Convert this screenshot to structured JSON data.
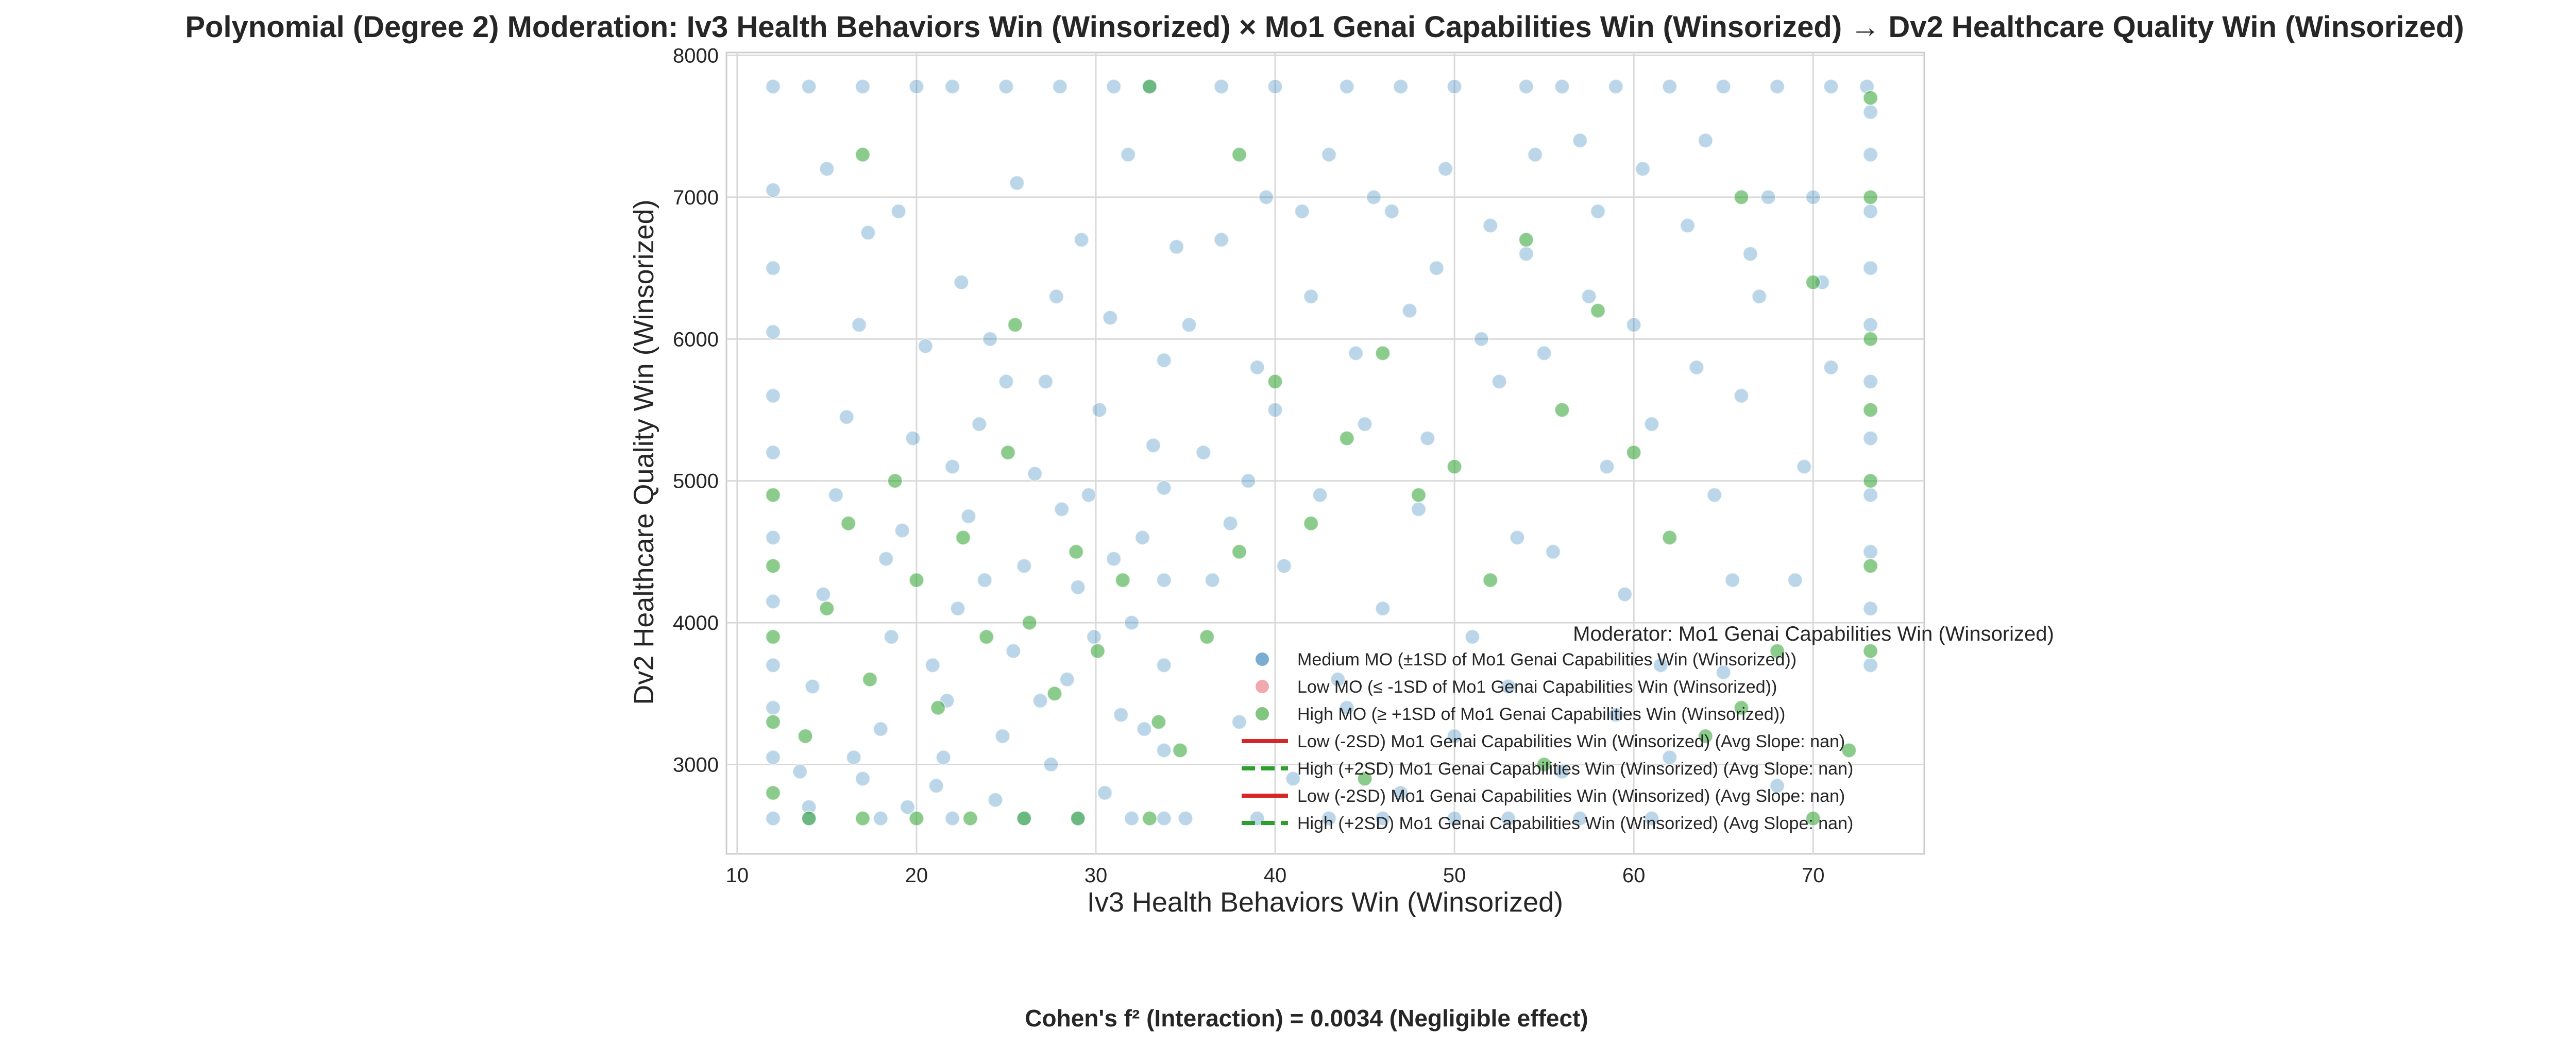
{
  "chart_data": {
    "type": "scatter",
    "title": "Polynomial (Degree 2) Moderation: Iv3 Health Behaviors Win (Winsorized) × Mo1 Genai Capabilities Win (Winsorized) → Dv2 Healthcare Quality Win (Winsorized)",
    "xlabel": "Iv3 Health Behaviors Win (Winsorized)",
    "ylabel": "Dv2 Healthcare Quality Win (Winsorized)",
    "xlim": [
      9.4,
      76.2
    ],
    "ylim": [
      2370,
      8020
    ],
    "xticks": [
      10,
      20,
      30,
      40,
      50,
      60,
      70
    ],
    "yticks": [
      3000,
      4000,
      5000,
      6000,
      7000,
      8000
    ],
    "grid": true,
    "legend_title": "Moderator: Mo1 Genai Capabilities Win (Winsorized)",
    "legend_position": "lower right",
    "legend_items": [
      {
        "label": "Medium MO (±1SD of Mo1 Genai Capabilities Win (Winsorized))",
        "kind": "marker",
        "color": "#1f77b4"
      },
      {
        "label": "Low MO (≤ -1SD of Mo1 Genai Capabilities Win (Winsorized))",
        "kind": "marker",
        "color": "#e8707a"
      },
      {
        "label": "High MO (≥ +1SD of Mo1 Genai Capabilities Win (Winsorized))",
        "kind": "marker",
        "color": "#2ca02c"
      },
      {
        "label": "Low (-2SD) Mo1 Genai Capabilities Win (Winsorized) (Avg Slope: nan)",
        "kind": "solid",
        "color": "#d62728"
      },
      {
        "label": "High (+2SD) Mo1 Genai Capabilities Win (Winsorized) (Avg Slope: nan)",
        "kind": "dashed",
        "color": "#2ca02c"
      },
      {
        "label": "Low (-2SD) Mo1 Genai Capabilities Win (Winsorized) (Avg Slope: nan)",
        "kind": "solid",
        "color": "#d62728"
      },
      {
        "label": "High (+2SD) Mo1 Genai Capabilities Win (Winsorized) (Avg Slope: nan)",
        "kind": "dashed",
        "color": "#2ca02c"
      }
    ],
    "series": [
      {
        "name": "Medium MO (±1SD of Mo1 Genai Capabilities Win (Winsorized))",
        "color": "#1f77b4",
        "opacity": 0.3,
        "points": [
          [
            12.0,
            2620
          ],
          [
            12.0,
            3050
          ],
          [
            12.0,
            3400
          ],
          [
            12.0,
            3700
          ],
          [
            12.0,
            4150
          ],
          [
            12.0,
            4600
          ],
          [
            12.0,
            5200
          ],
          [
            12.0,
            5600
          ],
          [
            12.0,
            6050
          ],
          [
            12.0,
            6500
          ],
          [
            12.0,
            7050
          ],
          [
            13.5,
            2950
          ],
          [
            14.2,
            3550
          ],
          [
            14.8,
            4200
          ],
          [
            15.5,
            4900
          ],
          [
            16.1,
            5450
          ],
          [
            16.8,
            6100
          ],
          [
            17.3,
            6750
          ],
          [
            18.0,
            3250
          ],
          [
            18.6,
            3900
          ],
          [
            19.2,
            4650
          ],
          [
            19.8,
            5300
          ],
          [
            20.5,
            5950
          ],
          [
            21.1,
            2850
          ],
          [
            21.7,
            3450
          ],
          [
            22.3,
            4100
          ],
          [
            22.9,
            4750
          ],
          [
            23.5,
            5400
          ],
          [
            24.1,
            6000
          ],
          [
            24.8,
            3200
          ],
          [
            25.4,
            3800
          ],
          [
            26.0,
            4400
          ],
          [
            26.6,
            5050
          ],
          [
            27.2,
            5700
          ],
          [
            27.8,
            6300
          ],
          [
            28.4,
            3600
          ],
          [
            29.0,
            4250
          ],
          [
            29.6,
            4900
          ],
          [
            30.2,
            5500
          ],
          [
            30.8,
            6150
          ],
          [
            31.4,
            3350
          ],
          [
            32.0,
            4000
          ],
          [
            32.6,
            4600
          ],
          [
            33.2,
            5250
          ],
          [
            33.8,
            5850
          ],
          [
            33.8,
            2620
          ],
          [
            33.8,
            3100
          ],
          [
            33.8,
            3700
          ],
          [
            33.8,
            4300
          ],
          [
            33.8,
            4950
          ],
          [
            16.5,
            3050
          ],
          [
            18.3,
            4450
          ],
          [
            20.9,
            3700
          ],
          [
            22.0,
            5100
          ],
          [
            23.8,
            4300
          ],
          [
            25.0,
            5700
          ],
          [
            26.9,
            3450
          ],
          [
            28.1,
            4800
          ],
          [
            29.9,
            3900
          ],
          [
            31.0,
            4450
          ],
          [
            14.0,
            2700
          ],
          [
            17.0,
            2900
          ],
          [
            19.5,
            2700
          ],
          [
            21.5,
            3050
          ],
          [
            24.4,
            2750
          ],
          [
            27.5,
            3000
          ],
          [
            30.5,
            2800
          ],
          [
            32.7,
            3250
          ],
          [
            15.0,
            7200
          ],
          [
            19.0,
            6900
          ],
          [
            22.5,
            6400
          ],
          [
            25.6,
            7100
          ],
          [
            29.2,
            6700
          ],
          [
            31.8,
            7300
          ],
          [
            34.5,
            6650
          ],
          [
            36.0,
            5200
          ],
          [
            37.5,
            4700
          ],
          [
            39.0,
            5800
          ],
          [
            40.5,
            4400
          ],
          [
            42.0,
            6300
          ],
          [
            43.5,
            3600
          ],
          [
            45.0,
            5400
          ],
          [
            46.5,
            6900
          ],
          [
            48.0,
            4800
          ],
          [
            49.5,
            7200
          ],
          [
            51.0,
            3900
          ],
          [
            52.5,
            5700
          ],
          [
            54.0,
            6600
          ],
          [
            55.5,
            4500
          ],
          [
            57.0,
            7400
          ],
          [
            58.5,
            5100
          ],
          [
            60.0,
            6100
          ],
          [
            61.5,
            3700
          ],
          [
            63.0,
            6800
          ],
          [
            64.5,
            4900
          ],
          [
            66.0,
            5600
          ],
          [
            67.5,
            7000
          ],
          [
            69.0,
            4300
          ],
          [
            70.5,
            6400
          ],
          [
            38.0,
            3300
          ],
          [
            41.0,
            2900
          ],
          [
            44.0,
            3400
          ],
          [
            47.0,
            2800
          ],
          [
            50.0,
            3200
          ],
          [
            53.0,
            3550
          ],
          [
            56.0,
            2950
          ],
          [
            59.0,
            3350
          ],
          [
            62.0,
            3050
          ],
          [
            65.0,
            3650
          ],
          [
            68.0,
            2850
          ],
          [
            12,
            7780
          ],
          [
            14,
            7780
          ],
          [
            17,
            7780
          ],
          [
            20,
            7780
          ],
          [
            22,
            7780
          ],
          [
            25,
            7780
          ],
          [
            28,
            7780
          ],
          [
            31,
            7780
          ],
          [
            33,
            7780
          ],
          [
            37,
            7780
          ],
          [
            40,
            7780
          ],
          [
            44,
            7780
          ],
          [
            47,
            7780
          ],
          [
            50,
            7780
          ],
          [
            54,
            7780
          ],
          [
            56,
            7780
          ],
          [
            59,
            7780
          ],
          [
            62,
            7780
          ],
          [
            65,
            7780
          ],
          [
            68,
            7780
          ],
          [
            71,
            7780
          ],
          [
            73,
            7780
          ],
          [
            14,
            2620
          ],
          [
            18,
            2620
          ],
          [
            22,
            2620
          ],
          [
            26,
            2620
          ],
          [
            29,
            2620
          ],
          [
            32,
            2620
          ],
          [
            35,
            2620
          ],
          [
            39,
            2620
          ],
          [
            43,
            2620
          ],
          [
            46,
            2620
          ],
          [
            50,
            2620
          ],
          [
            53,
            2620
          ],
          [
            57,
            2620
          ],
          [
            61,
            2620
          ],
          [
            73.2,
            3700
          ],
          [
            73.2,
            4100
          ],
          [
            73.2,
            4500
          ],
          [
            73.2,
            4900
          ],
          [
            73.2,
            5300
          ],
          [
            73.2,
            5700
          ],
          [
            73.2,
            6100
          ],
          [
            73.2,
            6500
          ],
          [
            73.2,
            6900
          ],
          [
            73.2,
            7300
          ],
          [
            73.2,
            7600
          ],
          [
            36.5,
            4300
          ],
          [
            38.5,
            5000
          ],
          [
            40.0,
            5500
          ],
          [
            42.5,
            4900
          ],
          [
            44.5,
            5900
          ],
          [
            46.0,
            4100
          ],
          [
            48.5,
            5300
          ],
          [
            51.5,
            6000
          ],
          [
            53.5,
            4600
          ],
          [
            55.0,
            5900
          ],
          [
            57.5,
            6300
          ],
          [
            59.5,
            4200
          ],
          [
            61.0,
            5400
          ],
          [
            63.5,
            5800
          ],
          [
            65.5,
            4300
          ],
          [
            67.0,
            6300
          ],
          [
            69.5,
            5100
          ],
          [
            71.0,
            5800
          ],
          [
            35.2,
            6100
          ],
          [
            37.0,
            6700
          ],
          [
            39.5,
            7000
          ],
          [
            41.5,
            6900
          ],
          [
            43.0,
            7300
          ],
          [
            45.5,
            7000
          ],
          [
            47.5,
            6200
          ],
          [
            49.0,
            6500
          ],
          [
            52.0,
            6800
          ],
          [
            54.5,
            7300
          ],
          [
            58.0,
            6900
          ],
          [
            60.5,
            7200
          ],
          [
            64.0,
            7400
          ],
          [
            66.5,
            6600
          ],
          [
            70.0,
            7000
          ]
        ]
      },
      {
        "name": "High MO (≥ +1SD of Mo1 Genai Capabilities Win (Winsorized))",
        "color": "#2ca02c",
        "opacity": 0.55,
        "points": [
          [
            12.0,
            2800
          ],
          [
            12.0,
            3300
          ],
          [
            12.0,
            3900
          ],
          [
            12.0,
            4400
          ],
          [
            12.0,
            4900
          ],
          [
            13.8,
            3200
          ],
          [
            15.0,
            4100
          ],
          [
            16.2,
            4700
          ],
          [
            17.4,
            3600
          ],
          [
            18.8,
            5000
          ],
          [
            20.0,
            4300
          ],
          [
            21.2,
            3400
          ],
          [
            22.6,
            4600
          ],
          [
            23.9,
            3900
          ],
          [
            25.1,
            5200
          ],
          [
            26.3,
            4000
          ],
          [
            27.7,
            3500
          ],
          [
            28.9,
            4500
          ],
          [
            30.1,
            3800
          ],
          [
            31.5,
            4300
          ],
          [
            33.5,
            3300
          ],
          [
            34.7,
            3100
          ],
          [
            36.2,
            3900
          ],
          [
            38.0,
            4500
          ],
          [
            40.0,
            5700
          ],
          [
            42.0,
            4700
          ],
          [
            44.0,
            5300
          ],
          [
            46.0,
            5900
          ],
          [
            48.0,
            4900
          ],
          [
            50.0,
            5100
          ],
          [
            52.0,
            4300
          ],
          [
            54.0,
            6700
          ],
          [
            56.0,
            5500
          ],
          [
            58.0,
            6200
          ],
          [
            60.0,
            5200
          ],
          [
            62.0,
            4600
          ],
          [
            64.0,
            3200
          ],
          [
            66.0,
            7000
          ],
          [
            68.0,
            3800
          ],
          [
            70.0,
            6400
          ],
          [
            72.0,
            3100
          ],
          [
            73.2,
            3800
          ],
          [
            73.2,
            4400
          ],
          [
            73.2,
            5000
          ],
          [
            73.2,
            5500
          ],
          [
            73.2,
            6000
          ],
          [
            73.2,
            7000
          ],
          [
            73.2,
            7700
          ],
          [
            17.0,
            7300
          ],
          [
            25.5,
            6100
          ],
          [
            33.0,
            7780
          ],
          [
            38.0,
            7300
          ],
          [
            14,
            2620
          ],
          [
            17,
            2620
          ],
          [
            20,
            2620
          ],
          [
            23,
            2620
          ],
          [
            26,
            2620
          ],
          [
            29,
            2620
          ],
          [
            33,
            2620
          ],
          [
            45,
            2900
          ],
          [
            55,
            3000
          ],
          [
            66,
            3400
          ],
          [
            70,
            2620
          ]
        ]
      }
    ]
  },
  "footer": {
    "cohen": "Cohen's f² (Interaction) = 0.0034 (Negligible effect)"
  }
}
